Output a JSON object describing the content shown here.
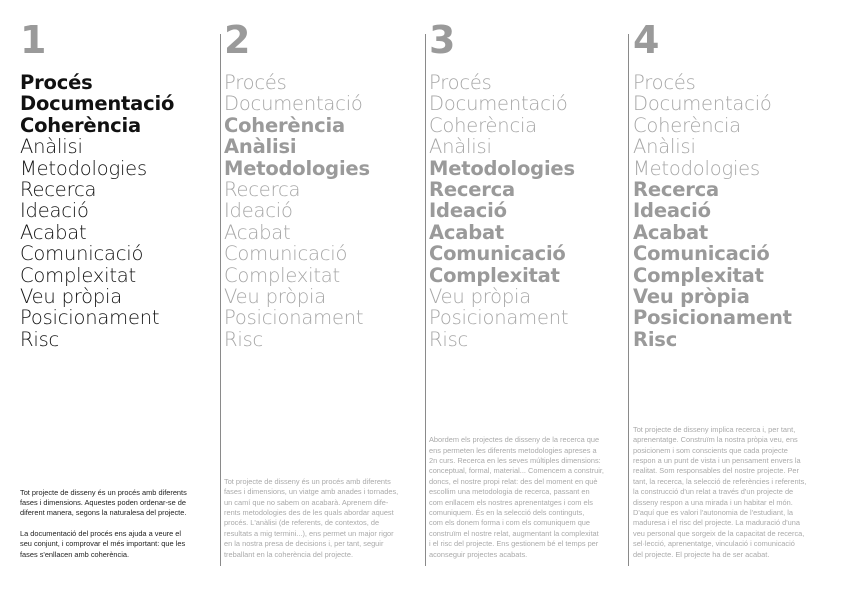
{
  "colors": {
    "dark": "#111111",
    "gray": "#a6a6a6",
    "rule": "#8a8a8a"
  },
  "columns": [
    {
      "number": "1",
      "items": [
        {
          "label": "Procés",
          "bold": true
        },
        {
          "label": "Documentació",
          "bold": true
        },
        {
          "label": "Coherència",
          "bold": true
        },
        {
          "label": "Anàlisi",
          "bold": false
        },
        {
          "label": "Metodologies",
          "bold": false
        },
        {
          "label": "Recerca",
          "bold": false
        },
        {
          "label": "Ideació",
          "bold": false
        },
        {
          "label": "Acabat",
          "bold": false
        },
        {
          "label": "Comunicació",
          "bold": false
        },
        {
          "label": "Complexitat",
          "bold": false
        },
        {
          "label": "Veu pròpia",
          "bold": false
        },
        {
          "label": "Posicionament",
          "bold": false
        },
        {
          "label": "Risc",
          "bold": false
        }
      ],
      "paragraphs": [
        [
          "Tot projecte de disseny és un procés amb diferents",
          "fases i dimensions. Aquestes poden ordenar-se de",
          "diferent manera, segons la naturalesa del projecte."
        ],
        [
          "La documentació del procés ens ajuda a veure el",
          "seu conjunt, i comprovar el més important: que les",
          "fases s'enllacen amb coherència."
        ]
      ]
    },
    {
      "number": "2",
      "items": [
        {
          "label": "Procés",
          "bold": false
        },
        {
          "label": "Documentació",
          "bold": false
        },
        {
          "label": "Coherència",
          "bold": true
        },
        {
          "label": "Anàlisi",
          "bold": true
        },
        {
          "label": "Metodologies",
          "bold": true
        },
        {
          "label": "Recerca",
          "bold": false
        },
        {
          "label": "Ideació",
          "bold": false
        },
        {
          "label": "Acabat",
          "bold": false
        },
        {
          "label": "Comunicació",
          "bold": false
        },
        {
          "label": "Complexitat",
          "bold": false
        },
        {
          "label": "Veu pròpia",
          "bold": false
        },
        {
          "label": "Posicionament",
          "bold": false
        },
        {
          "label": "Risc",
          "bold": false
        }
      ],
      "paragraphs": [
        [
          "Tot projecte de disseny és un procés amb diferents",
          "fases i dimensions, un viatge amb anades i tornades,",
          "un camí que no sabem on acabarà. Aprenem dife-",
          "rents metodologies des de les quals abordar aquest",
          "procés. L'anàlisi (de referents, de contextos, de",
          "resultats a mig termini...), ens permet un major rigor",
          "en la nostra presa de decisions i, per tant, seguir",
          "treballant en la coherència del projecte."
        ]
      ]
    },
    {
      "number": "3",
      "items": [
        {
          "label": "Procés",
          "bold": false
        },
        {
          "label": "Documentació",
          "bold": false
        },
        {
          "label": "Coherència",
          "bold": false
        },
        {
          "label": "Anàlisi",
          "bold": false
        },
        {
          "label": "Metodologies",
          "bold": true
        },
        {
          "label": "Recerca",
          "bold": true
        },
        {
          "label": "Ideació",
          "bold": true
        },
        {
          "label": "Acabat",
          "bold": true
        },
        {
          "label": "Comunicació",
          "bold": true
        },
        {
          "label": "Complexitat",
          "bold": true
        },
        {
          "label": "Veu pròpia",
          "bold": false
        },
        {
          "label": "Posicionament",
          "bold": false
        },
        {
          "label": "Risc",
          "bold": false
        }
      ],
      "paragraphs": [
        [
          "Abordem els projectes de disseny de la recerca que",
          "ens permeten les diferents metodologies apreses a",
          "2n curs. Recerca en les seves múltiples dimensions:",
          "conceptual, formal, material... Comencem a construir,",
          "doncs, el nostre propi relat: des del moment en què",
          "escollim una metodologia de recerca, passant en",
          "com enllacem els nostres aprenentatges i com els",
          "comuniquem. És en la selecció dels continguts,",
          "com els donem forma i com els comuniquem que",
          "construïm el nostre relat, augmentant la complexitat",
          "i el risc del projecte. Ens gestionem bé el temps per",
          "aconseguir projectes acabats."
        ]
      ]
    },
    {
      "number": "4",
      "items": [
        {
          "label": "Procés",
          "bold": false
        },
        {
          "label": "Documentació",
          "bold": false
        },
        {
          "label": "Coherència",
          "bold": false
        },
        {
          "label": "Anàlisi",
          "bold": false
        },
        {
          "label": "Metodologies",
          "bold": false
        },
        {
          "label": "Recerca",
          "bold": true
        },
        {
          "label": "Ideació",
          "bold": true
        },
        {
          "label": "Acabat",
          "bold": true
        },
        {
          "label": "Comunicació",
          "bold": true
        },
        {
          "label": "Complexitat",
          "bold": true
        },
        {
          "label": "Veu pròpia",
          "bold": true
        },
        {
          "label": "Posicionament",
          "bold": true
        },
        {
          "label": "Risc",
          "bold": true
        }
      ],
      "paragraphs": [
        [
          "Tot projecte de disseny implica recerca i, per tant,",
          "aprenentatge. Construïm la nostra pròpia veu, ens",
          "posicionem i som conscients que cada projecte",
          "respon a un punt de vista i un pensament envers la",
          "realitat. Som responsables del nostre projecte. Per",
          "tant, la recerca, la selecció de referències i referents,",
          "la construcció d'un relat a través d'un projecte de",
          "disseny respon a una mirada i un habitar el món.",
          "D'aquí que es valori l'autonomia de l'estudiant, la",
          "maduresa i el risc del projecte. La maduració d'una",
          "veu personal que sorgeix de la capacitat de recerca,",
          "sel·lecció, aprenentatge, vinculació i comunicació",
          "del projecte. El projecte ha de ser acabat."
        ]
      ]
    }
  ]
}
